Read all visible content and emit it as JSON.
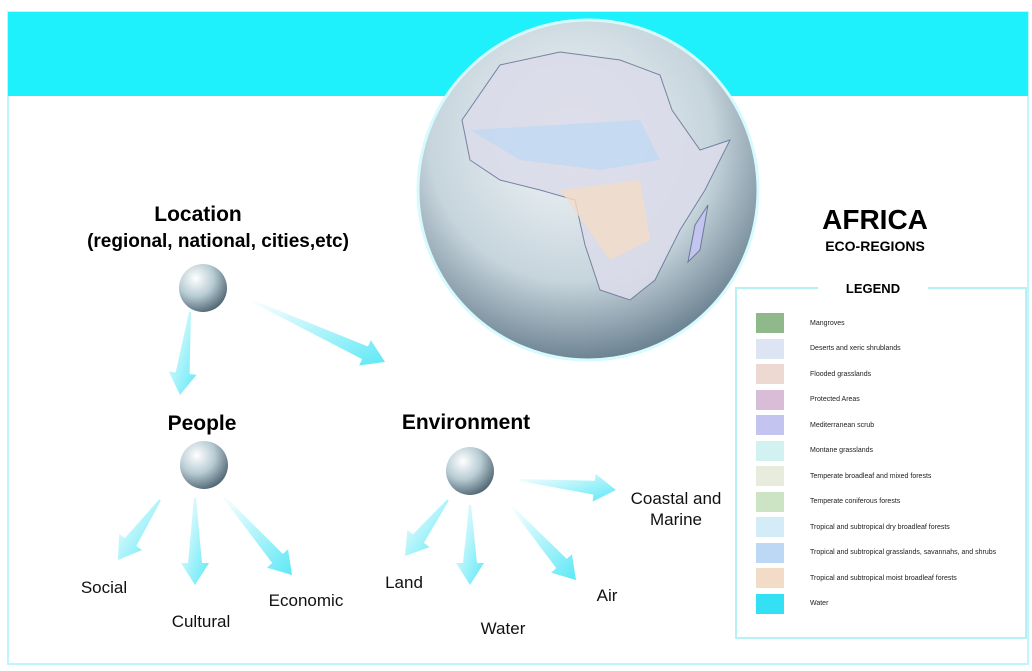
{
  "title": "AFRICA",
  "subtitle": "ECO-REGIONS",
  "nodes": [
    {
      "label": "Location",
      "detail": "(regional, national, cities,etc)"
    },
    {
      "label": "People"
    },
    {
      "label": "Environment"
    }
  ],
  "leaves": [
    "Social",
    "Cultural",
    "Economic",
    "Land",
    "Water",
    "Air",
    "Coastal and Marine"
  ],
  "legend": {
    "title": "LEGEND",
    "items": [
      {
        "label": "Mangroves",
        "color": "#8fb98a"
      },
      {
        "label": "Deserts and xeric shrublands",
        "color": "#dde4f4"
      },
      {
        "label": "Flooded grasslands",
        "color": "#eed8d2"
      },
      {
        "label": "Protected Areas",
        "color": "#d8bcd8"
      },
      {
        "label": "Mediterranean scrub",
        "color": "#c4c4f0"
      },
      {
        "label": "Montane grasslands",
        "color": "#d2f2f2"
      },
      {
        "label": "Temperate broadleaf and mixed forests",
        "color": "#e8ecdc"
      },
      {
        "label": "Temperate coniferous forests",
        "color": "#cce4c4"
      },
      {
        "label": "Tropical and subtropical dry broadleaf forests",
        "color": "#d4ecf8"
      },
      {
        "label": "Tropical and subtropical grasslands, savannahs, and shrubs",
        "color": "#bcd8f4"
      },
      {
        "label": "Tropical and subtropical moist broadleaf forests",
        "color": "#f2dcc8"
      },
      {
        "label": "Water",
        "color": "#33e0f4"
      }
    ]
  }
}
